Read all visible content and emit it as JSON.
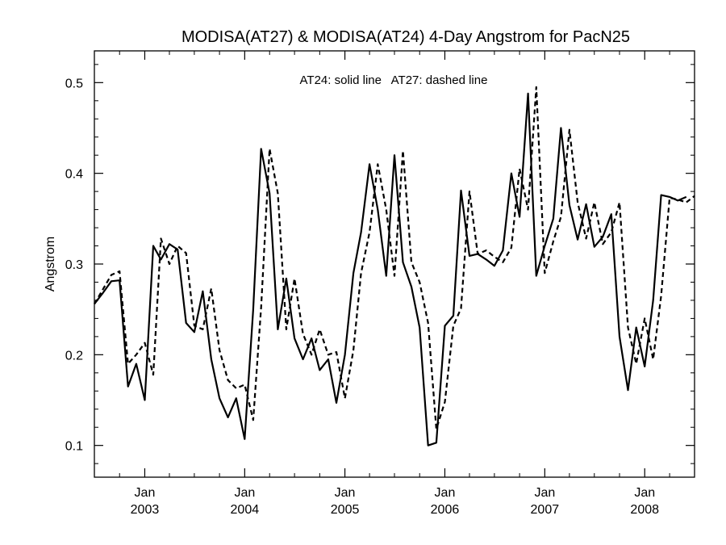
{
  "chart_data": {
    "type": "line",
    "title": "MODISA(AT27) & MODISA(AT24) 4-Day Angstrom for PacN25",
    "annotation": "AT24: solid line   AT27: dashed line",
    "xlabel": "",
    "ylabel": "Angstrom",
    "xlim": [
      "2002-07-01",
      "2008-07-01"
    ],
    "ylim": [
      0.065,
      0.535
    ],
    "yticks": [
      0.1,
      0.2,
      0.3,
      0.4,
      0.5
    ],
    "xticks": [
      {
        "date": "2003-01-01",
        "month": "Jan",
        "year": "2003"
      },
      {
        "date": "2004-01-01",
        "month": "Jan",
        "year": "2004"
      },
      {
        "date": "2005-01-01",
        "month": "Jan",
        "year": "2005"
      },
      {
        "date": "2006-01-01",
        "month": "Jan",
        "year": "2006"
      },
      {
        "date": "2007-01-01",
        "month": "Jan",
        "year": "2007"
      },
      {
        "date": "2008-01-01",
        "month": "Jan",
        "year": "2008"
      }
    ],
    "grid": false,
    "series": [
      {
        "name": "AT24",
        "style": "solid",
        "color": "#000000",
        "points": [
          [
            "2002-07-01",
            0.256
          ],
          [
            "2002-08-01",
            0.268
          ],
          [
            "2002-09-01",
            0.281
          ],
          [
            "2002-10-01",
            0.282
          ],
          [
            "2002-11-01",
            0.165
          ],
          [
            "2002-12-01",
            0.19
          ],
          [
            "2003-01-01",
            0.15
          ],
          [
            "2003-02-01",
            0.32
          ],
          [
            "2003-03-01",
            0.305
          ],
          [
            "2003-04-01",
            0.322
          ],
          [
            "2003-05-01",
            0.316
          ],
          [
            "2003-06-01",
            0.235
          ],
          [
            "2003-07-01",
            0.225
          ],
          [
            "2003-08-01",
            0.27
          ],
          [
            "2003-09-01",
            0.195
          ],
          [
            "2003-10-01",
            0.152
          ],
          [
            "2003-11-01",
            0.131
          ],
          [
            "2003-12-01",
            0.152
          ],
          [
            "2004-01-01",
            0.107
          ],
          [
            "2004-02-01",
            0.25
          ],
          [
            "2004-03-01",
            0.427
          ],
          [
            "2004-04-01",
            0.378
          ],
          [
            "2004-05-01",
            0.228
          ],
          [
            "2004-06-01",
            0.284
          ],
          [
            "2004-07-01",
            0.218
          ],
          [
            "2004-08-01",
            0.195
          ],
          [
            "2004-09-01",
            0.218
          ],
          [
            "2004-10-01",
            0.183
          ],
          [
            "2004-11-01",
            0.195
          ],
          [
            "2004-12-01",
            0.147
          ],
          [
            "2005-01-01",
            0.2
          ],
          [
            "2005-02-01",
            0.29
          ],
          [
            "2005-03-01",
            0.335
          ],
          [
            "2005-04-01",
            0.41
          ],
          [
            "2005-05-01",
            0.36
          ],
          [
            "2005-06-01",
            0.287
          ],
          [
            "2005-07-01",
            0.42
          ],
          [
            "2005-08-01",
            0.302
          ],
          [
            "2005-09-01",
            0.275
          ],
          [
            "2005-10-01",
            0.23
          ],
          [
            "2005-11-01",
            0.1
          ],
          [
            "2005-12-01",
            0.103
          ],
          [
            "2006-01-01",
            0.232
          ],
          [
            "2006-02-01",
            0.243
          ],
          [
            "2006-03-01",
            0.381
          ],
          [
            "2006-04-01",
            0.309
          ],
          [
            "2006-05-01",
            0.311
          ],
          [
            "2006-06-01",
            0.305
          ],
          [
            "2006-07-01",
            0.298
          ],
          [
            "2006-08-01",
            0.315
          ],
          [
            "2006-09-01",
            0.4
          ],
          [
            "2006-10-01",
            0.352
          ],
          [
            "2006-11-01",
            0.488
          ],
          [
            "2006-12-01",
            0.287
          ],
          [
            "2007-01-01",
            0.32
          ],
          [
            "2007-02-01",
            0.35
          ],
          [
            "2007-03-01",
            0.45
          ],
          [
            "2007-04-01",
            0.365
          ],
          [
            "2007-05-01",
            0.327
          ],
          [
            "2007-06-01",
            0.366
          ],
          [
            "2007-07-01",
            0.319
          ],
          [
            "2007-08-01",
            0.33
          ],
          [
            "2007-09-01",
            0.355
          ],
          [
            "2007-10-01",
            0.22
          ],
          [
            "2007-11-01",
            0.161
          ],
          [
            "2007-12-01",
            0.23
          ],
          [
            "2008-01-01",
            0.187
          ],
          [
            "2008-02-01",
            0.26
          ],
          [
            "2008-03-01",
            0.376
          ],
          [
            "2008-04-01",
            0.374
          ],
          [
            "2008-05-01",
            0.37
          ],
          [
            "2008-06-01",
            0.374
          ]
        ]
      },
      {
        "name": "AT27",
        "style": "dashed",
        "color": "#000000",
        "points": [
          [
            "2002-07-01",
            0.256
          ],
          [
            "2002-08-01",
            0.272
          ],
          [
            "2002-09-01",
            0.288
          ],
          [
            "2002-10-01",
            0.292
          ],
          [
            "2002-11-01",
            0.19
          ],
          [
            "2002-12-01",
            0.2
          ],
          [
            "2003-01-01",
            0.213
          ],
          [
            "2003-02-01",
            0.178
          ],
          [
            "2003-03-01",
            0.328
          ],
          [
            "2003-04-01",
            0.3
          ],
          [
            "2003-05-01",
            0.32
          ],
          [
            "2003-06-01",
            0.312
          ],
          [
            "2003-07-01",
            0.232
          ],
          [
            "2003-08-01",
            0.228
          ],
          [
            "2003-09-01",
            0.273
          ],
          [
            "2003-10-01",
            0.205
          ],
          [
            "2003-11-01",
            0.172
          ],
          [
            "2003-12-01",
            0.163
          ],
          [
            "2004-01-01",
            0.167
          ],
          [
            "2004-02-01",
            0.128
          ],
          [
            "2004-03-01",
            0.252
          ],
          [
            "2004-04-01",
            0.427
          ],
          [
            "2004-05-01",
            0.378
          ],
          [
            "2004-06-01",
            0.228
          ],
          [
            "2004-07-01",
            0.284
          ],
          [
            "2004-08-01",
            0.223
          ],
          [
            "2004-09-01",
            0.2
          ],
          [
            "2004-10-01",
            0.228
          ],
          [
            "2004-11-01",
            0.2
          ],
          [
            "2004-12-01",
            0.203
          ],
          [
            "2005-01-01",
            0.152
          ],
          [
            "2005-02-01",
            0.205
          ],
          [
            "2005-03-01",
            0.29
          ],
          [
            "2005-04-01",
            0.335
          ],
          [
            "2005-05-01",
            0.41
          ],
          [
            "2005-06-01",
            0.36
          ],
          [
            "2005-07-01",
            0.287
          ],
          [
            "2005-08-01",
            0.425
          ],
          [
            "2005-09-01",
            0.302
          ],
          [
            "2005-10-01",
            0.28
          ],
          [
            "2005-11-01",
            0.235
          ],
          [
            "2005-12-01",
            0.118
          ],
          [
            "2006-01-01",
            0.148
          ],
          [
            "2006-02-01",
            0.232
          ],
          [
            "2006-03-01",
            0.251
          ],
          [
            "2006-04-01",
            0.38
          ],
          [
            "2006-05-01",
            0.311
          ],
          [
            "2006-06-01",
            0.315
          ],
          [
            "2006-07-01",
            0.308
          ],
          [
            "2006-08-01",
            0.302
          ],
          [
            "2006-09-01",
            0.318
          ],
          [
            "2006-10-01",
            0.405
          ],
          [
            "2006-11-01",
            0.36
          ],
          [
            "2006-12-01",
            0.495
          ],
          [
            "2007-01-01",
            0.29
          ],
          [
            "2007-02-01",
            0.325
          ],
          [
            "2007-03-01",
            0.352
          ],
          [
            "2007-04-01",
            0.448
          ],
          [
            "2007-05-01",
            0.368
          ],
          [
            "2007-06-01",
            0.328
          ],
          [
            "2007-07-01",
            0.368
          ],
          [
            "2007-08-01",
            0.322
          ],
          [
            "2007-09-01",
            0.335
          ],
          [
            "2007-10-01",
            0.368
          ],
          [
            "2007-11-01",
            0.23
          ],
          [
            "2007-12-01",
            0.19
          ],
          [
            "2008-01-01",
            0.24
          ],
          [
            "2008-02-01",
            0.195
          ],
          [
            "2008-03-01",
            0.265
          ],
          [
            "2008-04-01",
            0.373
          ],
          [
            "2008-05-01",
            0.371
          ],
          [
            "2008-06-01",
            0.368
          ],
          [
            "2008-07-01",
            0.375
          ]
        ]
      }
    ]
  }
}
